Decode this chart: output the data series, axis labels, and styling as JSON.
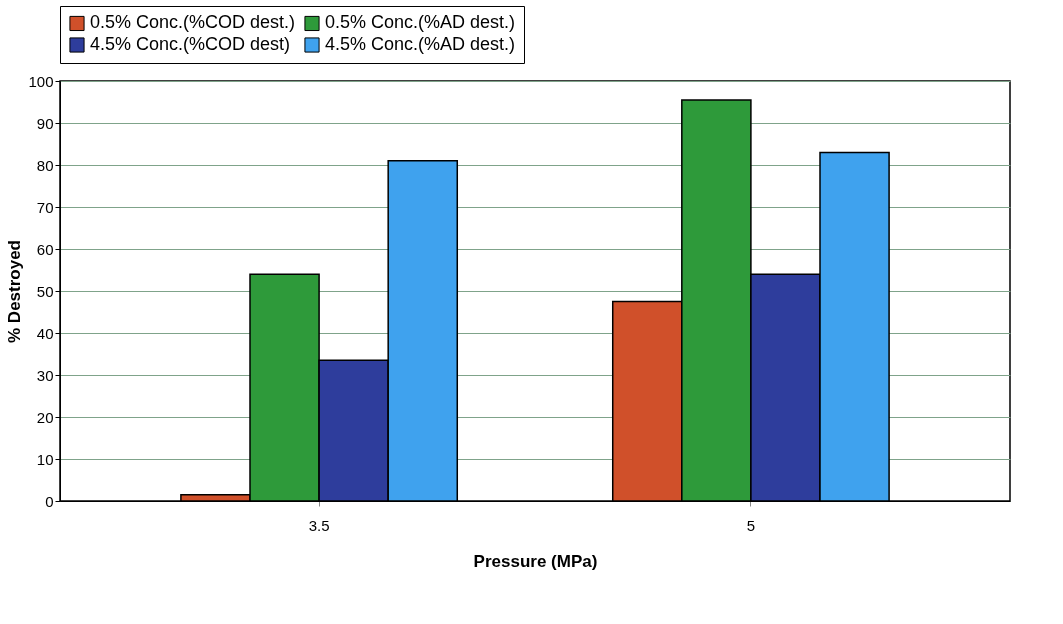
{
  "chart_data": {
    "type": "bar",
    "xlabel": "Pressure (MPa)",
    "ylabel": "% Destroyed",
    "categories": [
      "3.5",
      "5"
    ],
    "series": [
      {
        "name": "0.5% Conc.(%COD dest.)",
        "color": "#d0502a",
        "values": [
          1.5,
          47.5
        ]
      },
      {
        "name": "0.5% Conc.(%AD dest.)",
        "color": "#2e9a3a",
        "values": [
          54,
          95.5
        ]
      },
      {
        "name": "4.5% Conc.(%COD dest)",
        "color": "#2e3d9c",
        "values": [
          33.5,
          54
        ]
      },
      {
        "name": "4.5% Conc.(%AD dest.)",
        "color": "#3fa2ee",
        "values": [
          81,
          83
        ]
      }
    ],
    "ylim": [
      0,
      100
    ],
    "yticks": [
      0,
      10,
      20,
      30,
      40,
      50,
      60,
      70,
      80,
      90,
      100
    ],
    "grid": "y",
    "legend": "top"
  }
}
